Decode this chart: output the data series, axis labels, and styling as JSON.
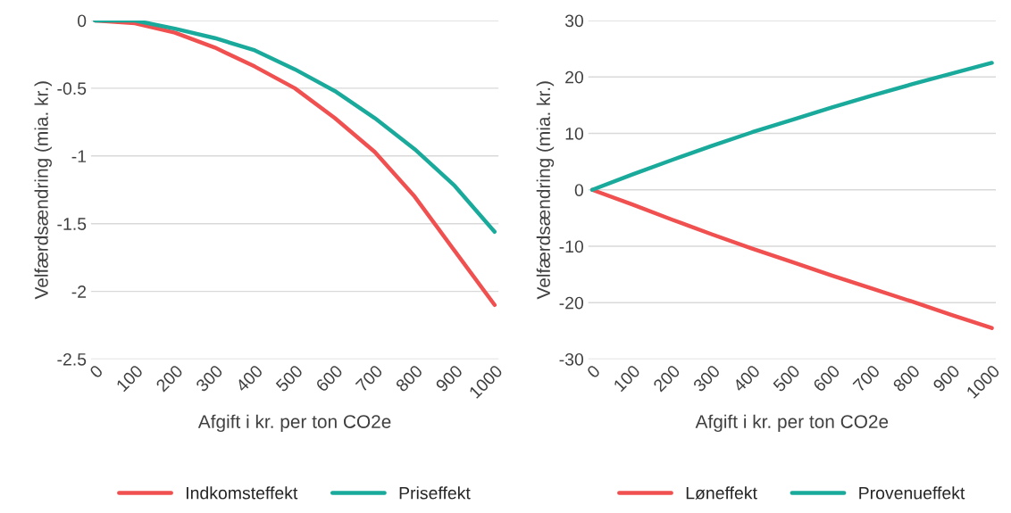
{
  "chart_data": [
    {
      "type": "line",
      "xlabel": "Afgift i kr. per ton CO2e",
      "ylabel": "Velfærdsændring (mia. kr.)",
      "categories": [
        "0",
        "100",
        "200",
        "300",
        "400",
        "500",
        "600",
        "700",
        "800",
        "900",
        "1000"
      ],
      "ylim": [
        -2.5,
        0
      ],
      "yticks": [
        -2.5,
        -2,
        -1.5,
        -1,
        -0.5,
        0
      ],
      "grid": "y",
      "legend": "bottom",
      "marker": "none",
      "line_style": "solid",
      "series": [
        {
          "name": "Indkomsteffekt",
          "color": "#f0504f",
          "values": [
            0,
            -0.02,
            -0.09,
            -0.2,
            -0.34,
            -0.5,
            -0.72,
            -0.97,
            -1.3,
            -1.7,
            -2.1
          ]
        },
        {
          "name": "Priseffekt",
          "color": "#1aaa9c",
          "values": [
            0,
            0,
            -0.06,
            -0.13,
            -0.22,
            -0.36,
            -0.52,
            -0.72,
            -0.95,
            -1.22,
            -1.56
          ]
        }
      ]
    },
    {
      "type": "line",
      "xlabel": "Afgift i kr. per ton CO2e",
      "ylabel": "Velfærdsændring (mia. kr.)",
      "categories": [
        "0",
        "100",
        "200",
        "300",
        "400",
        "500",
        "600",
        "700",
        "800",
        "900",
        "1000"
      ],
      "ylim": [
        -30,
        30
      ],
      "yticks": [
        -30,
        -20,
        -10,
        0,
        10,
        20,
        30
      ],
      "grid": "y",
      "legend": "bottom",
      "marker": "none",
      "line_style": "solid",
      "series": [
        {
          "name": "Løneffekt",
          "color": "#f0504f",
          "values": [
            0,
            -2.6,
            -5.3,
            -7.9,
            -10.4,
            -12.8,
            -15.2,
            -17.5,
            -19.8,
            -22.2,
            -24.5
          ]
        },
        {
          "name": "Provenueffekt",
          "color": "#1aaa9c",
          "values": [
            0,
            2.7,
            5.3,
            7.8,
            10.2,
            12.4,
            14.6,
            16.7,
            18.7,
            20.6,
            22.5
          ]
        }
      ]
    }
  ]
}
